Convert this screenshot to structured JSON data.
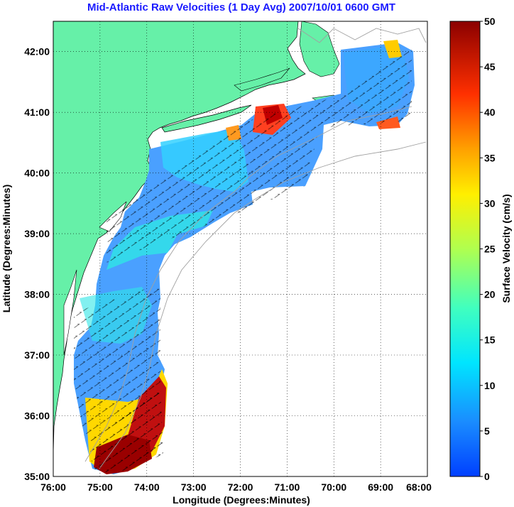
{
  "title": "Mid-Atlantic Raw Velocities (1 Day Avg) 2007/10/01 0600 GMT",
  "map": {
    "x_axis_label": "Longitude (Degrees:Minutes)",
    "y_axis_label": "Latitude (Degrees:Minutes)",
    "lon_ticks": [
      "76:00",
      "75:00",
      "74:00",
      "73:00",
      "72:00",
      "71:00",
      "70:00",
      "69:00",
      "68:00"
    ],
    "lat_ticks": [
      "42:00",
      "41:00",
      "40:00",
      "39:00",
      "38:00",
      "37:00",
      "36:00",
      "35:00"
    ],
    "lon_range": [
      -76,
      -68
    ],
    "lat_range": [
      35,
      42.5
    ],
    "grid": "dotted",
    "land_color": "#66f0a8",
    "coast_color": "#000000",
    "bathymetry_color": "#a0a0a0"
  },
  "colorbar": {
    "label": "Surface Velocity (cm/s)",
    "ticks": [
      "0",
      "5",
      "10",
      "15",
      "20",
      "25",
      "30",
      "35",
      "40",
      "45",
      "50"
    ],
    "range": [
      0,
      50
    ],
    "colormap": "jet"
  }
}
